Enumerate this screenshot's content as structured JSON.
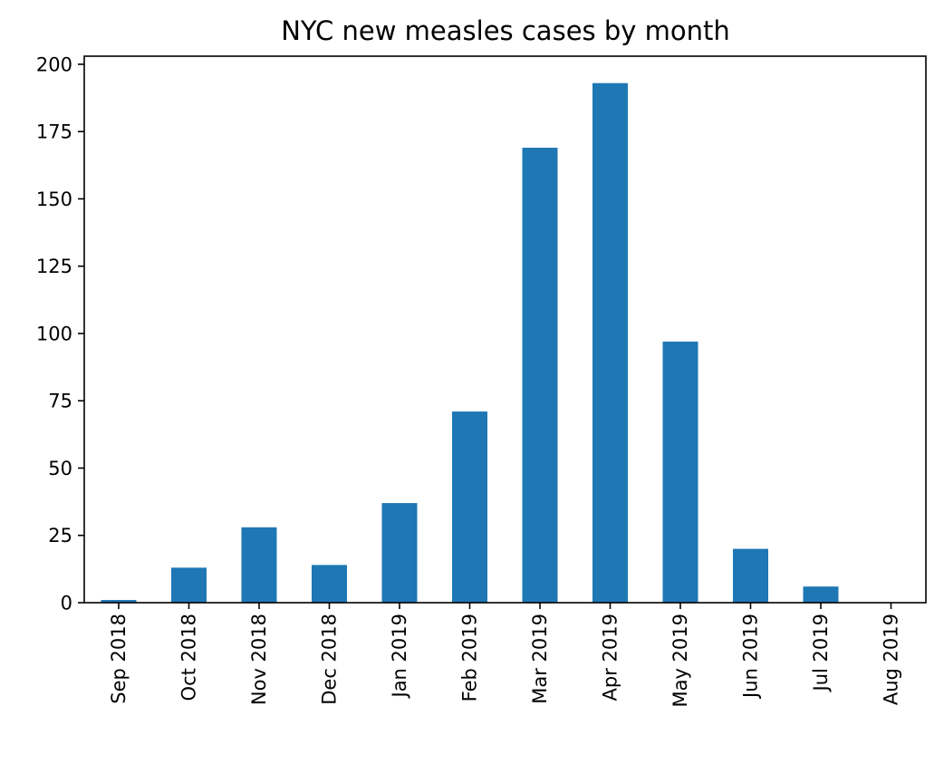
{
  "chart_data": {
    "type": "bar",
    "title": "NYC new measles cases by month",
    "xlabel": "",
    "ylabel": "",
    "categories": [
      "Sep 2018",
      "Oct 2018",
      "Nov 2018",
      "Dec 2018",
      "Jan 2019",
      "Feb 2019",
      "Mar 2019",
      "Apr 2019",
      "May 2019",
      "Jun 2019",
      "Jul 2019",
      "Aug 2019"
    ],
    "values": [
      1,
      13,
      28,
      14,
      37,
      71,
      169,
      193,
      97,
      20,
      6,
      0
    ],
    "ylim": [
      0,
      203
    ],
    "yticks": [
      0,
      25,
      50,
      75,
      100,
      125,
      150,
      175,
      200
    ],
    "grid": false,
    "legend": "none",
    "bar_color": "#1f77b4"
  }
}
